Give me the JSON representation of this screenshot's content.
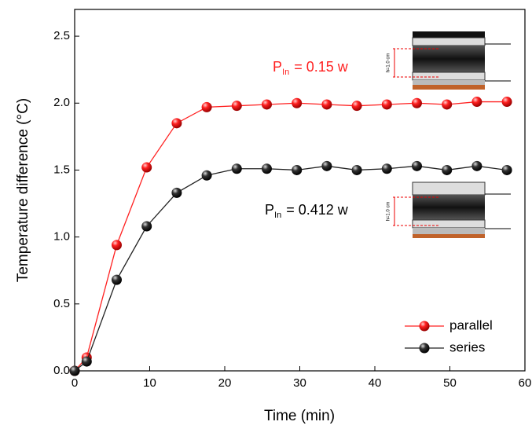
{
  "chart_data": {
    "type": "line",
    "x_label": "Time (min)",
    "y_label": "Temperature difference (°C)",
    "x": [
      0,
      1.6,
      5.6,
      9.6,
      13.6,
      17.6,
      21.6,
      25.6,
      29.6,
      33.6,
      37.6,
      41.6,
      45.6,
      49.6,
      53.6,
      57.6
    ],
    "series": [
      {
        "name": "parallel",
        "color": "#ff2020",
        "values": [
          0,
          0.1,
          0.94,
          1.52,
          1.85,
          1.97,
          1.98,
          1.99,
          2.0,
          1.99,
          1.98,
          1.99,
          2.0,
          1.99,
          2.01,
          2.01
        ]
      },
      {
        "name": "series",
        "color": "#222222",
        "values": [
          0,
          0.07,
          0.68,
          1.08,
          1.33,
          1.46,
          1.51,
          1.51,
          1.5,
          1.53,
          1.5,
          1.51,
          1.53,
          1.5,
          1.53,
          1.5
        ]
      }
    ],
    "annotations": [
      {
        "p": "P",
        "sub": "In",
        "text": "= 0.15 w",
        "color": "#ff2020"
      },
      {
        "p": "P",
        "sub": "In",
        "text": "= 0.412 w",
        "color": "#000000"
      }
    ],
    "inset_label": "h=1.0 cm",
    "xlim": [
      0,
      60
    ],
    "xticks": [
      0,
      10,
      20,
      30,
      40,
      50,
      60
    ],
    "ylim": [
      0,
      2.7
    ],
    "yticks": [
      {
        "value": 0,
        "label": "0.0"
      },
      {
        "value": 0.5,
        "label": "0.5"
      },
      {
        "value": 1,
        "label": "1.0"
      },
      {
        "value": 1.5,
        "label": "1.5"
      },
      {
        "value": 2,
        "label": "2.0"
      },
      {
        "value": 2.5,
        "label": "2.5"
      }
    ],
    "legend": "lower right"
  }
}
